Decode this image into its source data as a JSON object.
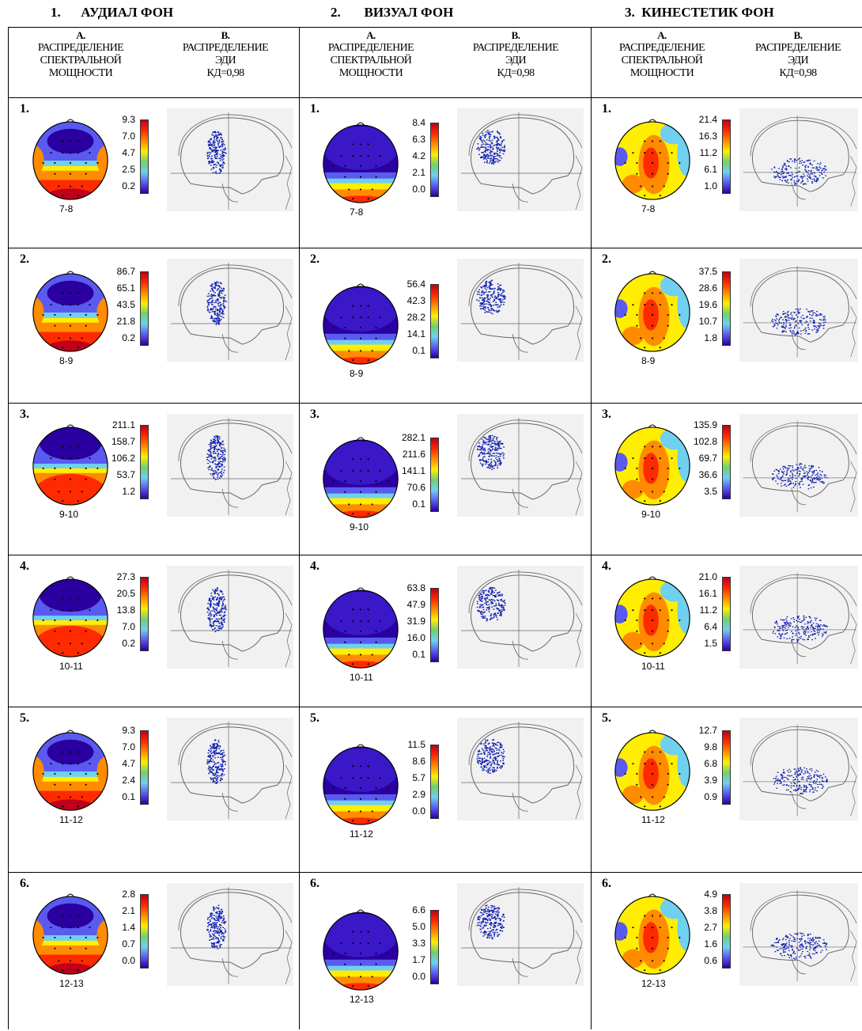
{
  "groups": [
    {
      "number": "1.",
      "name": "АУДИАЛ ФОН",
      "colA": {
        "letter": "А.",
        "line1": "РАСПРЕДЕЛЕНИЕ",
        "line2": "СПЕКТРАЛЬНОЙ",
        "line3": "МОЩНОСТИ"
      },
      "colB": {
        "letter": "В.",
        "line1": "РАСПРЕДЕЛЕНИЕ",
        "line2": "ЭДИ",
        "line3": "КД=0,98"
      },
      "rows": [
        {
          "num": "1.",
          "band": "7-8",
          "scale": [
            "9.3",
            "7.0",
            "4.7",
            "2.5",
            "0.2"
          ],
          "pattern": "audial"
        },
        {
          "num": "2.",
          "band": "8-9",
          "scale": [
            "86.7",
            "65.1",
            "43.5",
            "21.8",
            "0.2"
          ],
          "pattern": "audial"
        },
        {
          "num": "3.",
          "band": "9-10",
          "scale": [
            "211.1",
            "158.7",
            "106.2",
            "53.7",
            "1.2"
          ],
          "pattern": "posterior"
        },
        {
          "num": "4.",
          "band": "10-11",
          "scale": [
            "27.3",
            "20.5",
            "13.8",
            "7.0",
            "0.2"
          ],
          "pattern": "posterior"
        },
        {
          "num": "5.",
          "band": "11-12",
          "scale": [
            "9.3",
            "7.0",
            "4.7",
            "2.4",
            "0.1"
          ],
          "pattern": "audial"
        },
        {
          "num": "6.",
          "band": "12-13",
          "scale": [
            "2.8",
            "2.1",
            "1.4",
            "0.7",
            "0.0"
          ],
          "pattern": "audial"
        }
      ]
    },
    {
      "number": "2.",
      "name": "ВИЗУАЛ ФОН",
      "colA": {
        "letter": "А.",
        "line1": "РАСПРЕДЕЛЕНИЕ",
        "line2": "СПЕКТРАЛЬНОЙ",
        "line3": "МОЩНОСТИ"
      },
      "colB": {
        "letter": "В.",
        "line1": "РАСПРЕДЕЛЕНИЕ",
        "line2": "ЭДИ",
        "line3": "КД=0,98"
      },
      "rows": [
        {
          "num": "1.",
          "band": "7-8",
          "scale": [
            "8.4",
            "6.3",
            "4.2",
            "2.1",
            "0.0"
          ],
          "pattern": "occipital"
        },
        {
          "num": "2.",
          "band": "8-9",
          "scale": [
            "56.4",
            "42.3",
            "28.2",
            "14.1",
            "0.1"
          ],
          "pattern": "occipital"
        },
        {
          "num": "3.",
          "band": "9-10",
          "scale": [
            "282.1",
            "211.6",
            "141.1",
            "70.6",
            "0.1"
          ],
          "pattern": "occipital"
        },
        {
          "num": "4.",
          "band": "10-11",
          "scale": [
            "63.8",
            "47.9",
            "31.9",
            "16.0",
            "0.1"
          ],
          "pattern": "occipital"
        },
        {
          "num": "5.",
          "band": "11-12",
          "scale": [
            "11.5",
            "8.6",
            "5.7",
            "2.9",
            "0.0"
          ],
          "pattern": "occipital"
        },
        {
          "num": "6.",
          "band": "12-13",
          "scale": [
            "6.6",
            "5.0",
            "3.3",
            "1.7",
            "0.0"
          ],
          "pattern": "occipital"
        }
      ]
    },
    {
      "number": "3.",
      "name": "КИНЕСТЕТИК ФОН",
      "colA": {
        "letter": "А.",
        "line1": "РАСПРЕДЕЛЕНИЕ",
        "line2": "СПЕКТРАЛЬНОЙ",
        "line3": "МОЩНОСТИ"
      },
      "colB": {
        "letter": "В.",
        "line1": "РАСПРЕДЕЛЕНИЕ",
        "line2": "ЭДИ",
        "line3": "КД=0,98"
      },
      "rows": [
        {
          "num": "1.",
          "band": "7-8",
          "scale": [
            "21.4",
            "16.3",
            "11.2",
            "6.1",
            "1.0"
          ],
          "pattern": "central"
        },
        {
          "num": "2.",
          "band": "8-9",
          "scale": [
            "37.5",
            "28.6",
            "19.6",
            "10.7",
            "1.8"
          ],
          "pattern": "central"
        },
        {
          "num": "3.",
          "band": "9-10",
          "scale": [
            "135.9",
            "102.8",
            "69.7",
            "36.6",
            "3.5"
          ],
          "pattern": "central"
        },
        {
          "num": "4.",
          "band": "10-11",
          "scale": [
            "21.0",
            "16.1",
            "11.2",
            "6.4",
            "1.5"
          ],
          "pattern": "central"
        },
        {
          "num": "5.",
          "band": "11-12",
          "scale": [
            "12.7",
            "9.8",
            "6.8",
            "3.9",
            "0.9"
          ],
          "pattern": "central"
        },
        {
          "num": "6.",
          "band": "12-13",
          "scale": [
            "4.9",
            "3.8",
            "2.7",
            "1.6",
            "0.6"
          ],
          "pattern": "central"
        }
      ]
    }
  ],
  "colors": {
    "scale_top": "#c0001a",
    "scale_red": "#ff2a00",
    "scale_orange": "#ff8c00",
    "scale_yellow": "#ffee00",
    "scale_green": "#70d070",
    "scale_cyan": "#6fd0f0",
    "scale_blue": "#5a5af0",
    "scale_bottom": "#2a00a0",
    "scatter": "#1020b0",
    "brain_outline": "#666666"
  }
}
